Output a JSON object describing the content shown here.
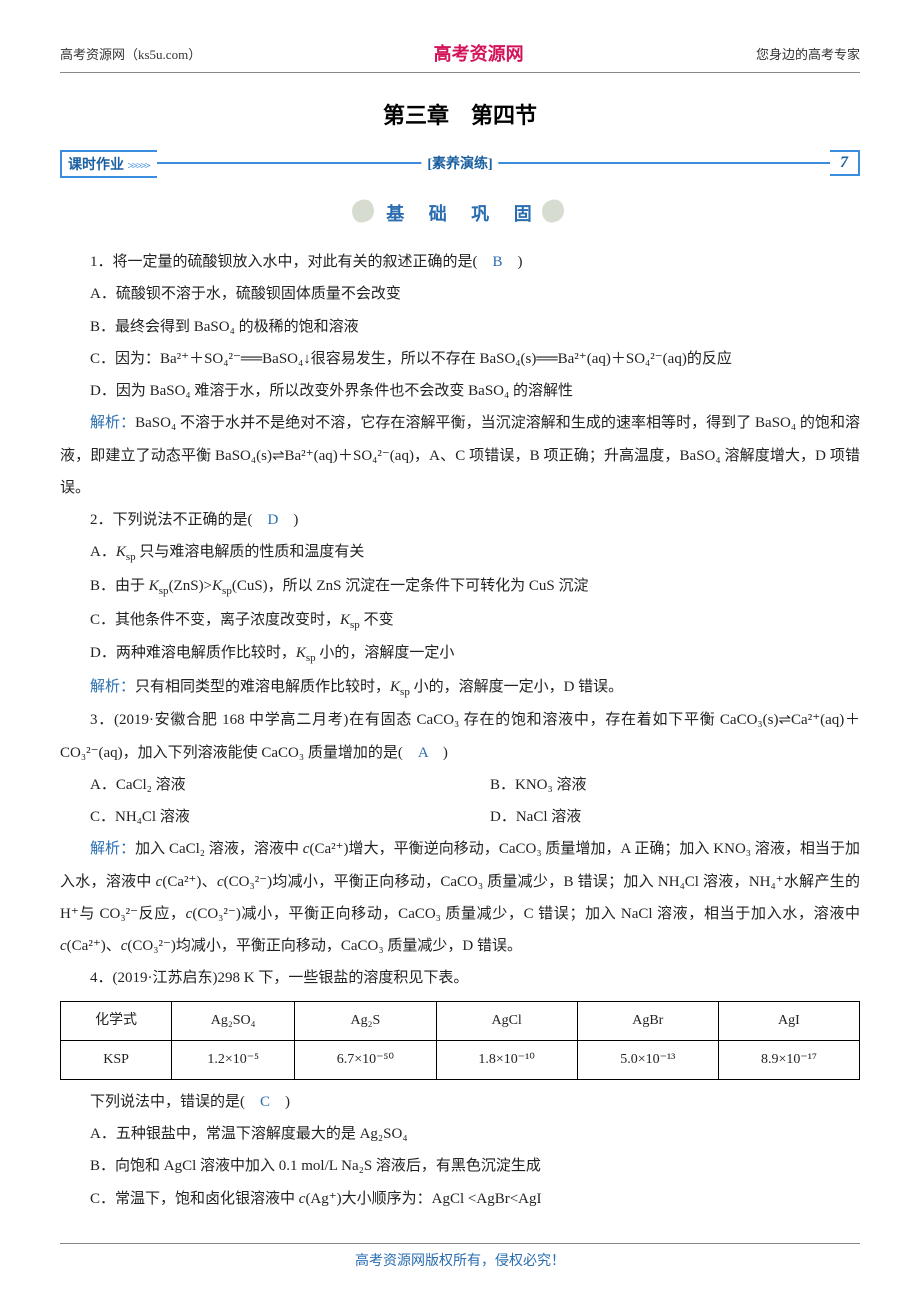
{
  "header": {
    "left": "高考资源网（ks5u.com）",
    "center": "高考资源网",
    "right": "您身边的高考专家"
  },
  "chapter": "第三章　第四节",
  "lesson_bar": {
    "left_label": "课时作业",
    "arrows": ">>>>>",
    "center_label": "[素养演练]",
    "right_number": "7"
  },
  "section": {
    "label": "基 础 巩 固"
  },
  "q1": {
    "stem": "1．将一定量的硫酸钡放入水中，对此有关的叙述正确的是(　",
    "ans": "B",
    "stem_end": "　)",
    "a": "A．硫酸钡不溶于水，硫酸钡固体质量不会改变",
    "b": "B．最终会得到 BaSO₄ 的极稀的饱和溶液",
    "c": "C．因为：Ba²⁺＋SO₄²⁻══BaSO₄↓很容易发生，所以不存在 BaSO₄(s)══Ba²⁺(aq)＋SO₄²⁻(aq)的反应",
    "d": "D．因为 BaSO₄ 难溶于水，所以改变外界条件也不会改变 BaSO₄ 的溶解性",
    "exp_label": "解析：",
    "exp": "BaSO₄ 不溶于水并不是绝对不溶，它存在溶解平衡，当沉淀溶解和生成的速率相等时，得到了 BaSO₄ 的饱和溶液，即建立了动态平衡 BaSO₄(s)⇌Ba²⁺(aq)＋SO₄²⁻(aq)，A、C 项错误，B 项正确；升高温度，BaSO₄ 溶解度增大，D 项错误。"
  },
  "q2": {
    "stem": "2．下列说法不正确的是(　",
    "ans": "D",
    "stem_end": "　)",
    "a_pre": "A．",
    "a_ksp": "K",
    "a_sp": "sp",
    "a_post": " 只与难溶电解质的性质和温度有关",
    "b_pre": "B．由于 ",
    "b_k1": "K",
    "b_sp1": "sp",
    "b_mid1": "(ZnS)>",
    "b_k2": "K",
    "b_sp2": "sp",
    "b_mid2": "(CuS)，所以 ZnS 沉淀在一定条件下可转化为 CuS 沉淀",
    "c_pre": "C．其他条件不变，离子浓度改变时，",
    "c_k": "K",
    "c_sp": "sp",
    "c_post": " 不变",
    "d_pre": "D．两种难溶电解质作比较时，",
    "d_k": "K",
    "d_sp": "sp",
    "d_post": " 小的，溶解度一定小",
    "exp_label": "解析：",
    "exp_pre": "只有相同类型的难溶电解质作比较时，",
    "exp_k": "K",
    "exp_sp": "sp",
    "exp_post": " 小的，溶解度一定小，D 错误。"
  },
  "q3": {
    "stem": "3．(2019·安徽合肥 168 中学高二月考)在有固态 CaCO₃ 存在的饱和溶液中，存在着如下平衡 CaCO₃(s)⇌Ca²⁺(aq)＋CO₃²⁻(aq)，加入下列溶液能使 CaCO₃ 质量增加的是(　",
    "ans": "A",
    "stem_end": "　)",
    "a": "A．CaCl₂ 溶液",
    "b": "B．KNO₃ 溶液",
    "c": "C．NH₄Cl 溶液",
    "d": "D．NaCl 溶液",
    "exp_label": "解析：",
    "exp_1": "加入 CaCl₂ 溶液，溶液中 ",
    "exp_c1": "c",
    "exp_2": "(Ca²⁺)增大，平衡逆向移动，CaCO₃ 质量增加，A 正确；加入 KNO₃ 溶液，相当于加入水，溶液中 ",
    "exp_c2": "c",
    "exp_3": "(Ca²⁺)、",
    "exp_c3": "c",
    "exp_4": "(CO₃²⁻)均减小，平衡正向移动，CaCO₃ 质量减少，B 错误；加入 NH₄Cl 溶液，NH₄⁺水解产生的 H⁺与 CO₃²⁻反应，",
    "exp_c4": "c",
    "exp_5": "(CO₃²⁻)减小，平衡正向移动，CaCO₃ 质量减少，C 错误；加入 NaCl 溶液，相当于加入水，溶液中 ",
    "exp_c5": "c",
    "exp_6": "(Ca²⁺)、",
    "exp_c6": "c",
    "exp_7": "(CO₃²⁻)均减小，平衡正向移动，CaCO₃ 质量减少，D 错误。"
  },
  "q4": {
    "stem": "4．(2019·江苏启东)298 K 下，一些银盐的溶度积见下表。",
    "table": {
      "headers": [
        "化学式",
        "Ag₂SO₄",
        "Ag₂S",
        "AgCl",
        "AgBr",
        "AgI"
      ],
      "row_label": "KSP",
      "values": [
        "1.2×10⁻⁵",
        "6.7×10⁻⁵⁰",
        "1.8×10⁻¹⁰",
        "5.0×10⁻¹³",
        "8.9×10⁻¹⁷"
      ],
      "col_widths": [
        "90px",
        "100px",
        "120px",
        "120px",
        "120px",
        "120px"
      ]
    },
    "after": "下列说法中，错误的是(　",
    "ans": "C",
    "after_end": "　)",
    "a": "A．五种银盐中，常温下溶解度最大的是 Ag₂SO₄",
    "b": "B．向饱和 AgCl 溶液中加入 0.1 mol/L Na₂S 溶液后，有黑色沉淀生成",
    "c_pre": "C．常温下，饱和卤化银溶液中 ",
    "c_c": "c",
    "c_post": "(Ag⁺)大小顺序为：AgCl <AgBr<AgI"
  },
  "footer": "高考资源网版权所有，侵权必究！"
}
